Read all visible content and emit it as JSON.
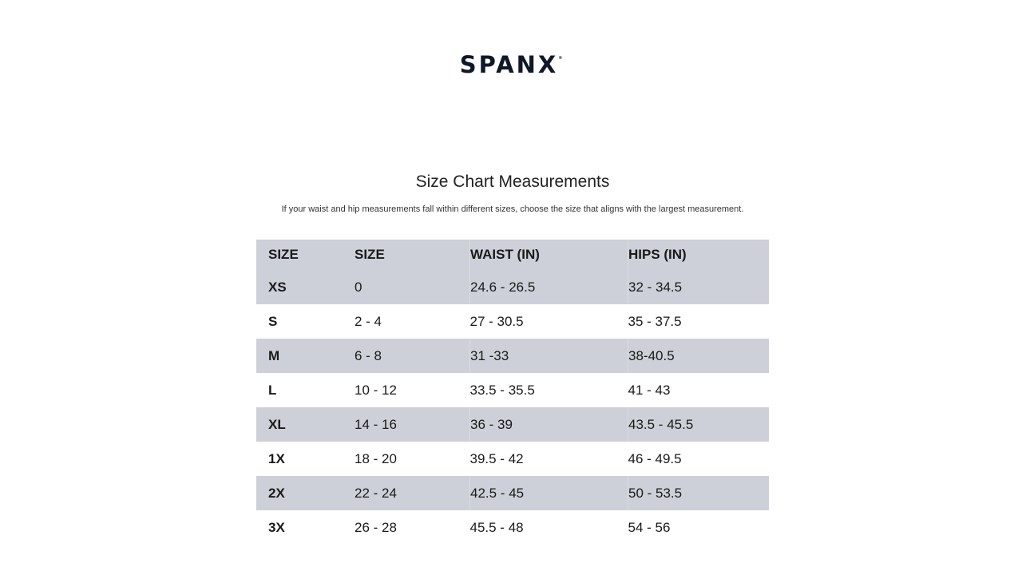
{
  "brand": {
    "logo": "SPANX",
    "mark": "®"
  },
  "title": "Size Chart Measurements",
  "subtitle": "If your waist and hip measurements fall within different sizes, choose the size that aligns with the largest measurement.",
  "colors": {
    "stripe": "#cdd0d8",
    "logo": "#0f1729"
  },
  "table": {
    "headers": [
      "SIZE",
      "SIZE",
      "WAIST (IN)",
      "HIPS (IN)"
    ],
    "rows": [
      [
        "XS",
        "0",
        "24.6 - 26.5",
        "32 - 34.5"
      ],
      [
        "S",
        "2 - 4",
        "27 - 30.5",
        "35 - 37.5"
      ],
      [
        "M",
        "6 - 8",
        "31 -33",
        "38-40.5"
      ],
      [
        "L",
        "10 - 12",
        "33.5 - 35.5",
        "41 - 43"
      ],
      [
        "XL",
        "14 - 16",
        "36 - 39",
        "43.5 - 45.5"
      ],
      [
        "1X",
        "18 - 20",
        "39.5 - 42",
        "46 - 49.5"
      ],
      [
        "2X",
        "22 - 24",
        "42.5 - 45",
        "50 - 53.5"
      ],
      [
        "3X",
        "26 - 28",
        "45.5 - 48",
        "54 - 56"
      ]
    ]
  }
}
